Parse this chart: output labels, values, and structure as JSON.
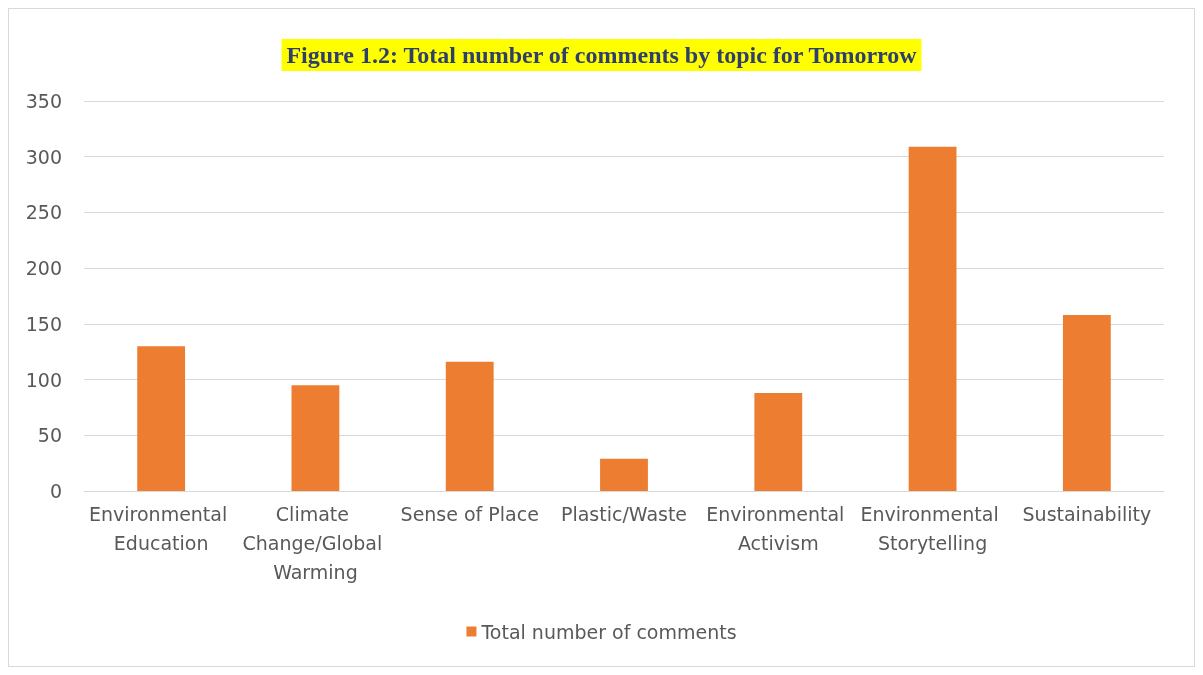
{
  "chart_data": {
    "type": "bar",
    "title": "Figure 1.2: Total number of comments by topic for Tomorrow",
    "categories": [
      "Environmental Education",
      "Climate Change/Global Warming",
      "Sense of Place",
      "Plastic/Waste",
      "Environmental Activism",
      "Environmental Storytelling",
      "Sustainability"
    ],
    "series": [
      {
        "name": "Total number of comments",
        "color": "#ed7d31",
        "values": [
          130,
          95,
          116,
          29,
          88,
          309,
          158
        ]
      }
    ],
    "ylim": [
      0,
      350
    ],
    "yticks": [
      0,
      50,
      100,
      150,
      200,
      250,
      300,
      350
    ],
    "grid": "y",
    "legend": "bottom"
  }
}
